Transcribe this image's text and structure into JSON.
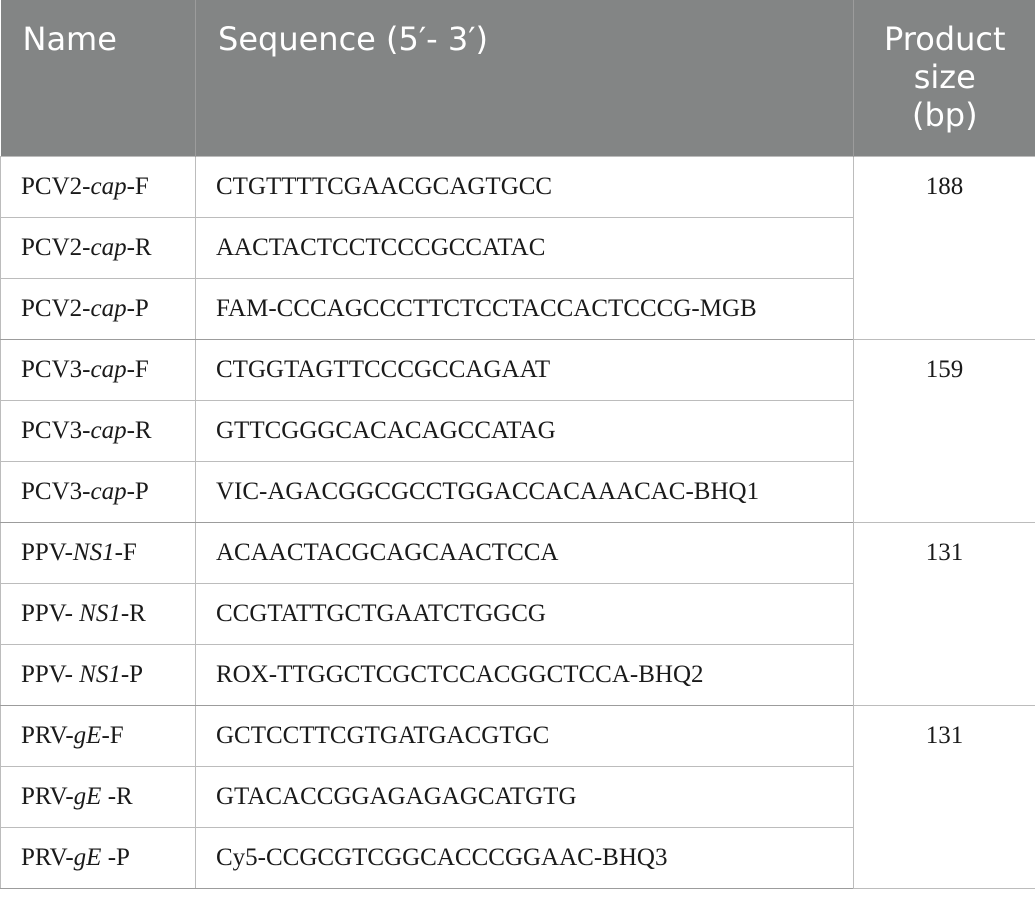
{
  "headers": {
    "name": "Name",
    "sequence": "Sequence (5′- 3′)",
    "size_line1": "Product",
    "size_line2": "size",
    "size_line3": "(bp)"
  },
  "groups": [
    {
      "size": "188",
      "rows": [
        {
          "pre": "PCV2-",
          "gene": "cap",
          "post": "-F",
          "seq": "CTGTTTTCGAACGCAGTGCC"
        },
        {
          "pre": "PCV2-",
          "gene": "cap",
          "post": "-R",
          "seq": "AACTACTCCTCCCGCCATAC"
        },
        {
          "pre": "PCV2-",
          "gene": "cap",
          "post": "-P",
          "seq": "FAM-CCCAGCCCTTCTCCTACCACTCCCG-MGB"
        }
      ]
    },
    {
      "size": "159",
      "rows": [
        {
          "pre": "PCV3-",
          "gene": "cap",
          "post": "-F",
          "seq": "CTGGTAGTTCCCGCCAGAAT"
        },
        {
          "pre": "PCV3-",
          "gene": "cap",
          "post": "-R",
          "seq": "GTTCGGGCACACAGCCATAG"
        },
        {
          "pre": "PCV3-",
          "gene": "cap",
          "post": "-P",
          "seq": "VIC-AGACGGCGCCTGGACCACAAACAC-BHQ1"
        }
      ]
    },
    {
      "size": "131",
      "rows": [
        {
          "pre": "PPV-",
          "gene": "NS1",
          "post": "-F",
          "seq": "ACAACTACGCAGCAACTCCA"
        },
        {
          "pre": "PPV- ",
          "gene": "NS1",
          "post": "-R",
          "seq": "CCGTATTGCTGAATCTGGCG"
        },
        {
          "pre": "PPV- ",
          "gene": "NS1",
          "post": "-P",
          "seq": "ROX-TTGGCTCGCTCCACGGCTCCA-BHQ2"
        }
      ]
    },
    {
      "size": "131",
      "rows": [
        {
          "pre": "PRV-",
          "gene": "gE",
          "post": "-F",
          "seq": "GCTCCTTCGTGATGACGTGC"
        },
        {
          "pre": "PRV-",
          "gene": "gE",
          "post": " -R",
          "seq": "GTACACCGGAGAGAGCATGTG"
        },
        {
          "pre": "PRV-",
          "gene": "gE",
          "post": " -P",
          "seq": "Cy5-CCGCGTCGGCACCCGGAAC-BHQ3"
        }
      ]
    }
  ]
}
